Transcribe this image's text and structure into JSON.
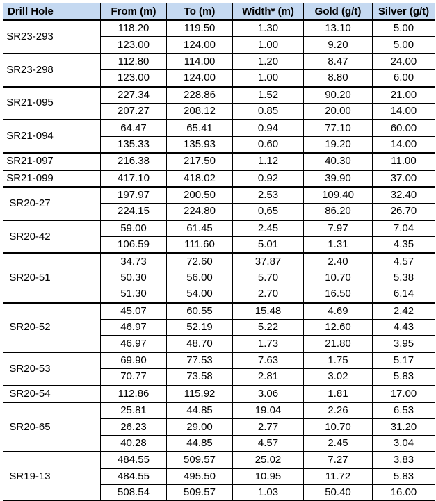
{
  "table": {
    "header": [
      "Drill Hole",
      "From (m)",
      "To (m)",
      "Width* (m)",
      "Gold (g/t)",
      "Silver (g/t)"
    ],
    "groups": [
      {
        "hole": "SR23-293",
        "rows": [
          [
            "118.20",
            "119.50",
            "1.30",
            "13.10",
            "5.00"
          ],
          [
            "123.00",
            "124.00",
            "1.00",
            "9.20",
            "5.00"
          ]
        ]
      },
      {
        "hole": "SR23-298",
        "rows": [
          [
            "112.80",
            "114.00",
            "1.20",
            "8.47",
            "24.00"
          ],
          [
            "123.00",
            "124.00",
            "1.00",
            "8.80",
            "6.00"
          ]
        ]
      },
      {
        "hole": "SR21-095",
        "rows": [
          [
            "227.34",
            "228.86",
            "1.52",
            "90.20",
            "21.00"
          ],
          [
            "207.27",
            "208.12",
            "0.85",
            "20.00",
            "14.00"
          ]
        ]
      },
      {
        "hole": "SR21-094",
        "rows": [
          [
            "64.47",
            "65.41",
            "0.94",
            "77.10",
            "60.00"
          ],
          [
            "135.33",
            "135.93",
            "0.60",
            "19.20",
            "14.00"
          ]
        ]
      },
      {
        "hole": "SR21-097",
        "rows": [
          [
            "216.38",
            "217.50",
            "1.12",
            "40.30",
            "11.00"
          ]
        ]
      },
      {
        "hole": "SR21-099",
        "rows": [
          [
            "417.10",
            "418.02",
            "0.92",
            "39.90",
            "37.00"
          ]
        ]
      },
      {
        "hole": "SR20-27",
        "rows": [
          [
            "197.97",
            "200.50",
            "2.53",
            "109.40",
            "32.40"
          ],
          [
            "224.15",
            "224.80",
            "0,65",
            "86.20",
            "26.70"
          ]
        ]
      },
      {
        "hole": "SR20-42",
        "rows": [
          [
            "59.00",
            "61.45",
            "2.45",
            "7.97",
            "7.04"
          ],
          [
            "106.59",
            "111.60",
            "5.01",
            "1.31",
            "4.35"
          ]
        ]
      },
      {
        "hole": "SR20-51",
        "rows": [
          [
            "34.73",
            "72.60",
            "37.87",
            "2.40",
            "4.57"
          ],
          [
            "50.30",
            "56.00",
            "5.70",
            "10.70",
            "5.38"
          ],
          [
            "51.30",
            "54.00",
            "2.70",
            "16.50",
            "6.14"
          ]
        ]
      },
      {
        "hole": "SR20-52",
        "rows": [
          [
            "45.07",
            "60.55",
            "15.48",
            "4.69",
            "2.42"
          ],
          [
            "46.97",
            "52.19",
            "5.22",
            "12.60",
            "4.43"
          ],
          [
            "46.97",
            "48.70",
            "1.73",
            "21.80",
            "3.95"
          ]
        ]
      },
      {
        "hole": "SR20-53",
        "rows": [
          [
            "69.90",
            "77.53",
            "7.63",
            "1.75",
            "5.17"
          ],
          [
            "70.77",
            "73.58",
            "2.81",
            "3.02",
            "5.83"
          ]
        ]
      },
      {
        "hole": "SR20-54",
        "rows": [
          [
            "112.86",
            "115.92",
            "3.06",
            "1.81",
            "17.00"
          ]
        ]
      },
      {
        "hole": "SR20-65",
        "rows": [
          [
            "25.81",
            "44.85",
            "19.04",
            "2.26",
            "6.53"
          ],
          [
            "26.23",
            "29.00",
            "2.77",
            "10.70",
            "31.20"
          ],
          [
            "40.28",
            "44.85",
            "4.57",
            "2.45",
            "3.04"
          ]
        ]
      },
      {
        "hole": "SR19-13",
        "rows": [
          [
            "484.55",
            "509.57",
            "25.02",
            "7.27",
            "3.83"
          ],
          [
            "484.55",
            "495.50",
            "10.95",
            "11.72",
            "5.83"
          ],
          [
            "508.54",
            "509.57",
            "1.03",
            "50.40",
            "16.00"
          ]
        ]
      }
    ]
  }
}
